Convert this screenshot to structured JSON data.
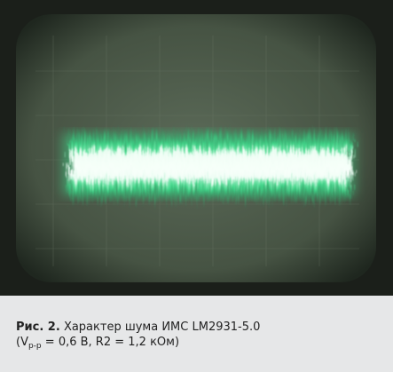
{
  "figure": {
    "label": "Рис. 2.",
    "caption_line1": "Характер шума ИМС LM2931-5.0",
    "caption_open": "(V",
    "caption_sub": "p-p",
    "caption_rest": " = 0,6 В, R2 = 1,2 кОм)"
  }
}
